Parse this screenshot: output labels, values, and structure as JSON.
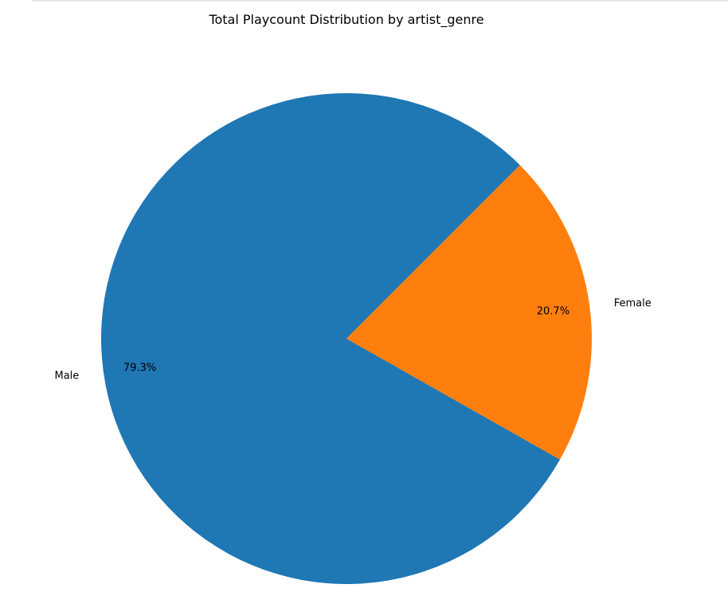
{
  "chart_data": {
    "type": "pie",
    "title": "Total Playcount Distribution by artist_genre",
    "slices": [
      {
        "label": "Male",
        "value": 79.3,
        "pct_label": "79.3%",
        "color": "#1f77b4"
      },
      {
        "label": "Female",
        "value": 20.7,
        "pct_label": "20.7%",
        "color": "#ff7f0e"
      }
    ],
    "start_angle_deg": 45,
    "legend": "none"
  }
}
